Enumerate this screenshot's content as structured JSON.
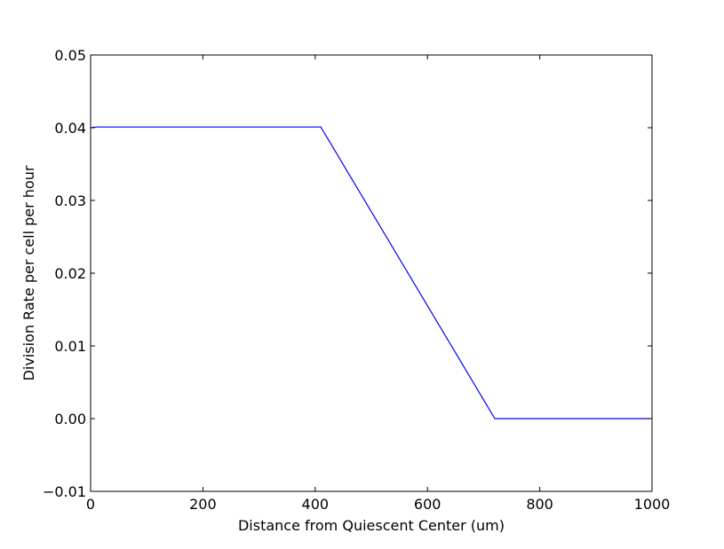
{
  "chart_data": {
    "type": "line",
    "title": "",
    "xlabel": "Distance from Quiescent Center (um)",
    "ylabel": "Division Rate per cell per hour",
    "xlim": [
      0,
      1000
    ],
    "ylim": [
      -0.01,
      0.05
    ],
    "x_ticks": [
      0,
      200,
      400,
      600,
      800,
      1000
    ],
    "x_tick_labels": [
      "0",
      "200",
      "400",
      "600",
      "800",
      "1000"
    ],
    "y_ticks": [
      -0.01,
      0.0,
      0.01,
      0.02,
      0.03,
      0.04,
      0.05
    ],
    "y_tick_labels": [
      "−0.01",
      "0.00",
      "0.01",
      "0.02",
      "0.03",
      "0.04",
      "0.05"
    ],
    "grid": false,
    "legend": "none",
    "series": [
      {
        "color": "#0000ff",
        "x": [
          0,
          10,
          410,
          720,
          995
        ],
        "y": [
          0.04,
          0.0401,
          0.0401,
          0.0,
          0.0
        ]
      }
    ]
  }
}
